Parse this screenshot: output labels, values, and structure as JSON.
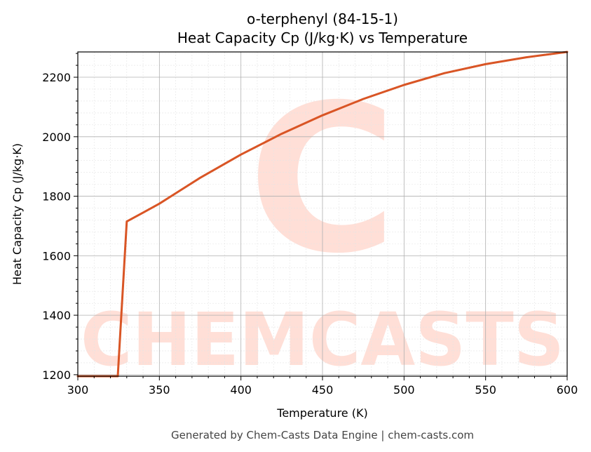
{
  "chart_data": {
    "type": "line",
    "title": "o-terphenyl (84-15-1)",
    "subtitle": "Heat Capacity Cp (J/kg·K) vs Temperature",
    "xlabel": "Temperature (K)",
    "ylabel": "Heat Capacity Cp (J/kg·K)",
    "xlim": [
      300,
      600
    ],
    "ylim": [
      1195,
      2285
    ],
    "xticks": [
      300,
      350,
      400,
      450,
      500,
      550,
      600
    ],
    "yticks": [
      1200,
      1400,
      1600,
      1800,
      2000,
      2200
    ],
    "grid": true,
    "series": [
      {
        "color": "#d95525",
        "x": [
          300,
          324.5,
          330,
          340,
          350,
          375,
          400,
          425,
          450,
          475,
          500,
          525,
          550,
          575,
          600
        ],
        "y": [
          1195,
          1195,
          1715,
          1745,
          1775,
          1862,
          1940,
          2010,
          2072,
          2127,
          2174,
          2214,
          2244,
          2267,
          2285
        ]
      }
    ]
  },
  "watermark": {
    "text": "CHEMCASTS",
    "letter": "C",
    "color": "#ffd9d0"
  },
  "footer": "Generated by Chem-Casts Data Engine | chem-casts.com"
}
